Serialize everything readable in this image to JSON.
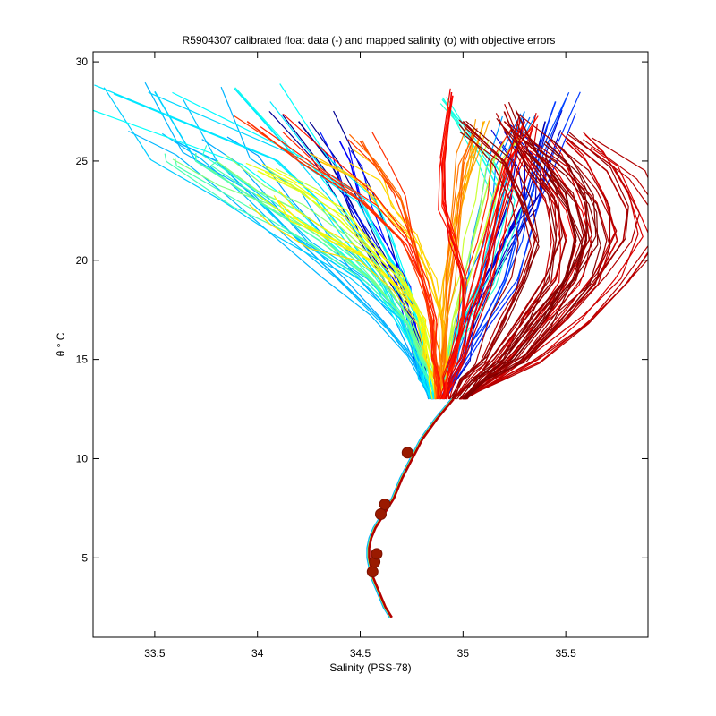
{
  "chart_data": {
    "type": "line",
    "title": "R5904307 calibrated float data (-) and mapped salinity (o) with objective errors",
    "xlabel": "Salinity (PSS-78)",
    "ylabel": "θ ° C",
    "xlim": [
      33.2,
      35.9
    ],
    "ylim": [
      1,
      30.5
    ],
    "x_ticks": [
      33.5,
      34,
      34.5,
      35,
      35.5
    ],
    "y_ticks": [
      5,
      10,
      15,
      20,
      25,
      30
    ],
    "grid": false,
    "colormap": "jet",
    "deep_curve": {
      "salinity": [
        34.65,
        34.62,
        34.6,
        34.58,
        34.56,
        34.55,
        34.54,
        34.54,
        34.55,
        34.57,
        34.6,
        34.63,
        34.66,
        34.7,
        34.75,
        34.8,
        34.87,
        34.95
      ],
      "theta": [
        2.0,
        2.5,
        3.0,
        3.5,
        4.0,
        4.5,
        5.0,
        5.5,
        6.0,
        6.5,
        7.0,
        7.5,
        8.0,
        9.0,
        10.0,
        11.0,
        12.0,
        13.0
      ]
    },
    "mapped_points": {
      "salinity": [
        34.56,
        34.57,
        34.58,
        34.6,
        34.62,
        34.73
      ],
      "theta": [
        4.3,
        4.8,
        5.2,
        7.2,
        7.7,
        10.3
      ]
    },
    "profiles": [
      {
        "c": 0.02,
        "s": [
          34.85,
          34.82,
          34.8,
          34.75,
          34.65,
          34.55,
          34.45,
          34.35,
          34.2
        ],
        "t": [
          13,
          14,
          15,
          17,
          19,
          21,
          23,
          25,
          27
        ]
      },
      {
        "c": 0.05,
        "s": [
          34.88,
          34.9,
          34.95,
          35.0,
          35.1,
          35.2,
          35.3,
          35.35,
          35.4
        ],
        "t": [
          13,
          14,
          15,
          17,
          19,
          21,
          23,
          25,
          27
        ]
      },
      {
        "c": 0.08,
        "s": [
          34.9,
          34.95,
          35.0,
          35.05,
          35.1,
          35.2,
          35.3,
          35.3,
          35.2
        ],
        "t": [
          13,
          14,
          15,
          17,
          19,
          21,
          23,
          25,
          26.5
        ]
      },
      {
        "c": 0.12,
        "s": [
          34.85,
          34.8,
          34.78,
          34.75,
          34.7,
          34.6,
          34.5,
          34.45,
          34.4
        ],
        "t": [
          13,
          14,
          15,
          17,
          19,
          21,
          23,
          25,
          26
        ]
      },
      {
        "c": 0.18,
        "s": [
          34.9,
          34.95,
          35.0,
          35.1,
          35.2,
          35.25,
          35.3,
          35.35,
          35.45
        ],
        "t": [
          13,
          14,
          15,
          17,
          19,
          21,
          23,
          25,
          28
        ]
      },
      {
        "c": 0.25,
        "s": [
          34.88,
          34.9,
          34.95,
          35.0,
          35.05,
          35.1,
          35.15,
          35.2,
          35.3
        ],
        "t": [
          13,
          14,
          15,
          17,
          19,
          21,
          23,
          25,
          27.5
        ]
      },
      {
        "c": 0.3,
        "s": [
          34.85,
          34.8,
          34.75,
          34.6,
          34.4,
          34.2,
          34.0,
          33.8,
          33.6
        ],
        "t": [
          13,
          14,
          15,
          17,
          19,
          21,
          23,
          25,
          26
        ]
      },
      {
        "c": 0.33,
        "s": [
          34.85,
          34.8,
          34.78,
          34.7,
          34.5,
          34.2,
          34.0,
          33.7,
          33.5
        ],
        "t": [
          13,
          14,
          15,
          17,
          19,
          21,
          23,
          25,
          28.5
        ]
      },
      {
        "c": 0.35,
        "s": [
          34.85,
          34.82,
          34.8,
          34.7,
          34.6,
          34.45,
          34.3,
          34.1,
          33.3
        ],
        "t": [
          13,
          14,
          15,
          17,
          19,
          21,
          23,
          25,
          28.4
        ]
      },
      {
        "c": 0.37,
        "s": [
          34.86,
          34.84,
          34.82,
          34.78,
          34.7,
          34.6,
          34.5,
          34.2,
          33.9
        ],
        "t": [
          13,
          14,
          15,
          17,
          19,
          21,
          23,
          25,
          28.6
        ]
      },
      {
        "c": 0.4,
        "s": [
          34.88,
          34.9,
          34.92,
          35.0,
          35.1,
          35.15,
          35.2,
          35.1,
          34.9
        ],
        "t": [
          13,
          14,
          15,
          17,
          19,
          21,
          23,
          25,
          28.2
        ]
      },
      {
        "c": 0.45,
        "s": [
          34.87,
          34.85,
          34.8,
          34.72,
          34.55,
          34.3,
          34.0,
          33.7,
          33.7
        ],
        "t": [
          13,
          14,
          15,
          17,
          19,
          21,
          23,
          25,
          25.4
        ]
      },
      {
        "c": 0.5,
        "s": [
          34.87,
          34.85,
          34.82,
          34.75,
          34.6,
          34.4,
          34.2,
          34.0,
          33.8
        ],
        "t": [
          13,
          14,
          15,
          17,
          19,
          21,
          22.5,
          23.5,
          25
        ]
      },
      {
        "c": 0.55,
        "s": [
          34.88,
          34.9,
          34.92,
          34.95,
          35.0,
          35.05,
          35.1,
          35.15,
          35.2
        ],
        "t": [
          13,
          14,
          15,
          17,
          19,
          21,
          23,
          25,
          26
        ]
      },
      {
        "c": 0.6,
        "s": [
          34.88,
          34.86,
          34.85,
          34.8,
          34.7,
          34.55,
          34.4,
          34.2,
          34.0
        ],
        "t": [
          13,
          14,
          15,
          17,
          19,
          20.5,
          22,
          23.5,
          24.5
        ]
      },
      {
        "c": 0.64,
        "s": [
          34.87,
          34.85,
          34.82,
          34.8,
          34.7,
          34.55,
          34.35,
          34.2,
          34.1
        ],
        "t": [
          13,
          14,
          15,
          17,
          18.5,
          20,
          21,
          22,
          23
        ]
      },
      {
        "c": 0.68,
        "s": [
          34.88,
          34.9,
          34.92,
          34.9,
          34.85,
          34.75,
          34.6,
          34.5,
          34.3
        ],
        "t": [
          13,
          14,
          15,
          17,
          19,
          21,
          22.5,
          24,
          25
        ]
      },
      {
        "c": 0.72,
        "s": [
          34.88,
          34.88,
          34.9,
          34.9,
          34.92,
          34.95,
          35.0,
          35.05,
          35.1
        ],
        "t": [
          13,
          14,
          15,
          17,
          19,
          21,
          23,
          25,
          27
        ]
      },
      {
        "c": 0.76,
        "s": [
          34.88,
          34.89,
          34.9,
          34.92,
          34.94,
          34.96,
          34.98,
          35.0,
          35.05
        ],
        "t": [
          13,
          14,
          15,
          17,
          19,
          21,
          23,
          25,
          26.5
        ]
      },
      {
        "c": 0.8,
        "s": [
          34.88,
          34.88,
          34.87,
          34.85,
          34.8,
          34.75,
          34.7,
          34.6,
          34.5
        ],
        "t": [
          13,
          14,
          15,
          17,
          19,
          21,
          23,
          24.5,
          26
        ]
      },
      {
        "c": 0.83,
        "s": [
          34.88,
          34.87,
          34.86,
          34.85,
          34.8,
          34.7,
          34.5,
          34.2,
          33.95
        ],
        "t": [
          13,
          14,
          15,
          17,
          19,
          21,
          23,
          25,
          27
        ]
      },
      {
        "c": 0.85,
        "s": [
          34.9,
          34.92,
          34.95,
          35.0,
          35.05,
          35.1,
          35.15,
          35.2,
          35.3
        ],
        "t": [
          13,
          14,
          15,
          17,
          19,
          21,
          23,
          25,
          27
        ]
      },
      {
        "c": 0.87,
        "s": [
          34.9,
          34.92,
          34.95,
          35.0,
          35.0,
          34.95,
          34.9,
          34.9,
          34.95
        ],
        "t": [
          13,
          14,
          15,
          17,
          19,
          21,
          23,
          25,
          28.3
        ]
      },
      {
        "c": 0.89,
        "s": [
          34.92,
          34.95,
          35.0,
          35.05,
          35.1,
          35.15,
          35.2,
          35.25,
          35.3
        ],
        "t": [
          13,
          14,
          15,
          17,
          19,
          21,
          23,
          25,
          27
        ]
      },
      {
        "c": 0.91,
        "s": [
          35.0,
          35.1,
          35.2,
          35.35,
          35.5,
          35.55,
          35.5,
          35.4,
          35.3
        ],
        "t": [
          13,
          14,
          15,
          17,
          19,
          21,
          23,
          25,
          26
        ]
      },
      {
        "c": 0.93,
        "s": [
          35.0,
          35.15,
          35.3,
          35.5,
          35.65,
          35.75,
          35.7,
          35.6,
          35.5
        ],
        "t": [
          13,
          14,
          15,
          17,
          19,
          21,
          23,
          25,
          26
        ]
      },
      {
        "c": 0.95,
        "s": [
          35.0,
          35.15,
          35.3,
          35.5,
          35.65,
          35.78,
          35.8,
          35.7,
          35.5
        ],
        "t": [
          13,
          14,
          15,
          17,
          19,
          21,
          22.5,
          24.5,
          26.2
        ]
      },
      {
        "c": 0.96,
        "s": [
          35.0,
          35.12,
          35.25,
          35.4,
          35.55,
          35.6,
          35.55,
          35.4,
          35.2
        ],
        "t": [
          13,
          14,
          15,
          17,
          19,
          21,
          23,
          25,
          27
        ]
      },
      {
        "c": 0.97,
        "s": [
          34.95,
          35.05,
          35.15,
          35.3,
          35.45,
          35.5,
          35.45,
          35.3,
          35.2
        ],
        "t": [
          13,
          14,
          15,
          17,
          19,
          21,
          23,
          25,
          27.5
        ]
      },
      {
        "c": 0.98,
        "s": [
          34.95,
          35.0,
          35.1,
          35.2,
          35.3,
          35.35,
          35.3,
          35.2,
          35.0
        ],
        "t": [
          13,
          14,
          15,
          17,
          19,
          21,
          23,
          25,
          27
        ]
      },
      {
        "c": 0.99,
        "s": [
          35.0,
          35.1,
          35.2,
          35.35,
          35.5,
          35.6,
          35.6,
          35.5,
          35.4
        ],
        "t": [
          13,
          14,
          15,
          17,
          19,
          21,
          23,
          25,
          26
        ]
      },
      {
        "c": 1.0,
        "s": [
          35.0,
          35.1,
          35.25,
          35.4,
          35.5,
          35.55,
          35.5,
          35.4,
          35.3
        ],
        "t": [
          13,
          14,
          15,
          17,
          19,
          21,
          23,
          24.5,
          25.5
        ]
      }
    ],
    "cluster_seed": 7
  }
}
